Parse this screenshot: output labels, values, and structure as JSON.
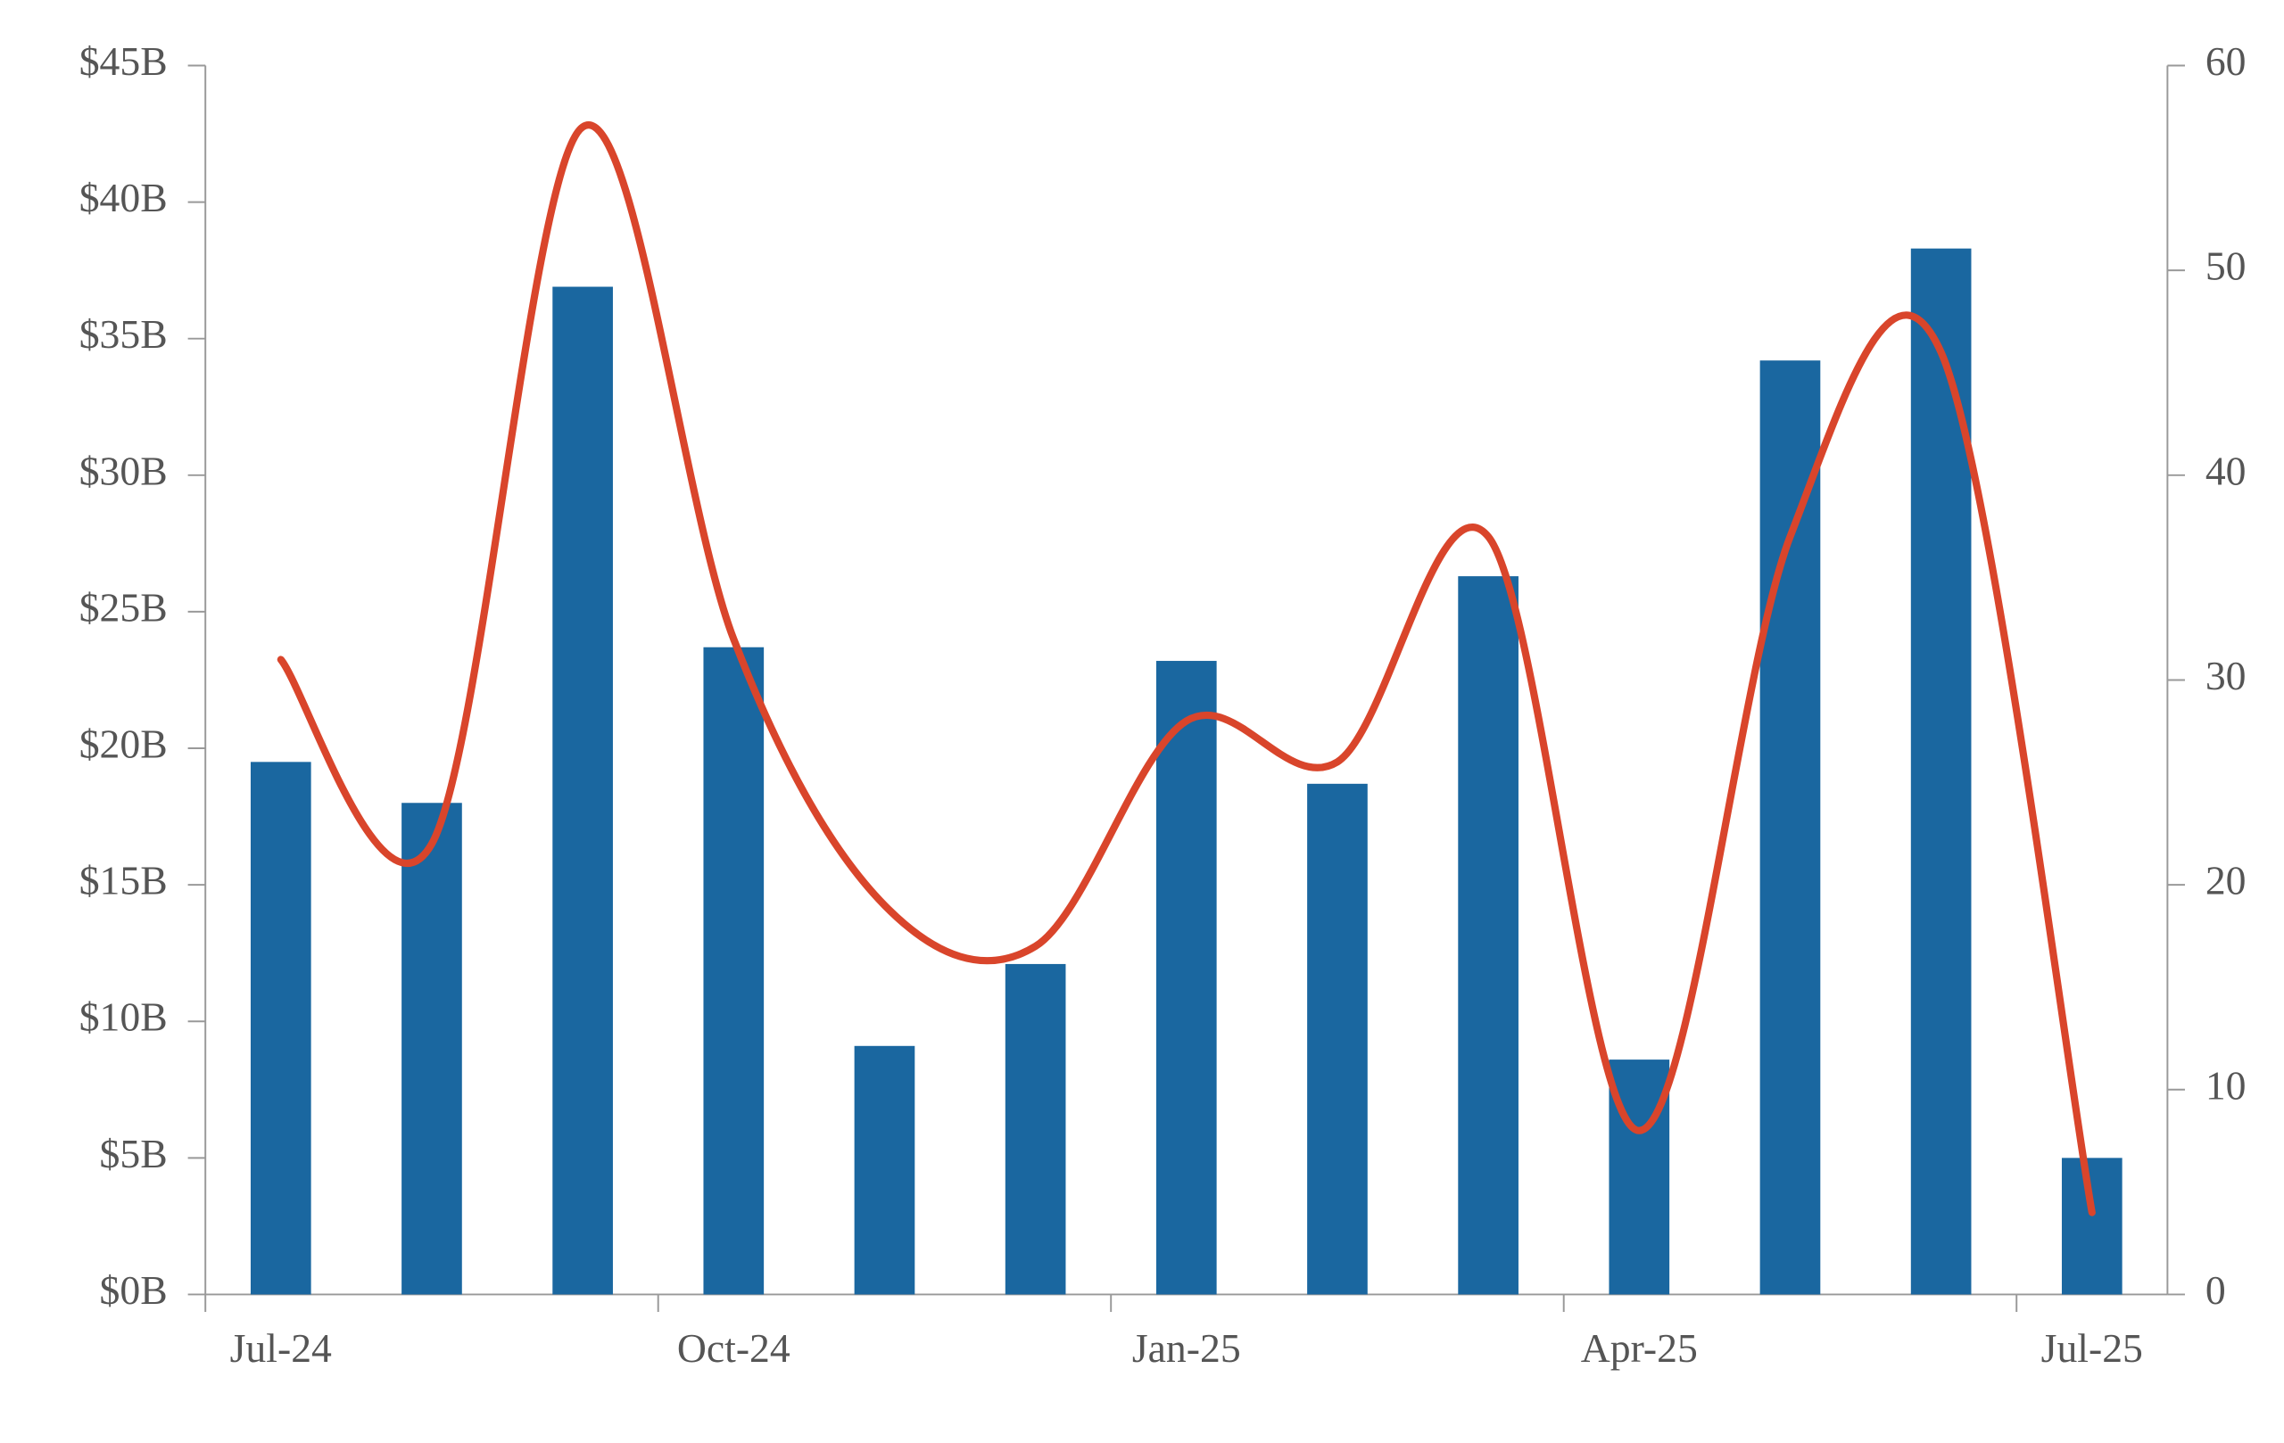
{
  "chart_data": {
    "type": "bar-line",
    "categories": [
      "Jul-24",
      null,
      null,
      "Oct-24",
      null,
      null,
      "Jan-25",
      null,
      null,
      "Apr-25",
      null,
      null,
      "Jul-25"
    ],
    "series": [
      {
        "type": "bar",
        "color": "#1a67a0",
        "values": [
          19.5,
          18.0,
          36.9,
          23.7,
          9.1,
          12.1,
          23.2,
          18.7,
          26.3,
          8.6,
          34.2,
          38.3,
          5.0
        ]
      },
      {
        "type": "line",
        "axis": "y2",
        "color": "#d9452b",
        "smooth": true,
        "values": [
          31,
          22,
          57,
          32,
          19,
          17,
          28,
          26,
          37,
          8,
          37,
          46,
          4
        ]
      }
    ],
    "ylim": [
      0,
      45
    ],
    "yticks": [
      {
        "value": 0,
        "label": "$0B"
      },
      {
        "value": 5,
        "label": "$5B"
      },
      {
        "value": 10,
        "label": "$10B"
      },
      {
        "value": 15,
        "label": "$15B"
      },
      {
        "value": 20,
        "label": "$20B"
      },
      {
        "value": 25,
        "label": "$25B"
      },
      {
        "value": 30,
        "label": "$30B"
      },
      {
        "value": 35,
        "label": "$35B"
      },
      {
        "value": 40,
        "label": "$40B"
      },
      {
        "value": 45,
        "label": "$45B"
      }
    ],
    "y2lim": [
      0,
      60
    ],
    "y2ticks": [
      0,
      10,
      20,
      30,
      40,
      50,
      60
    ],
    "grid": false
  }
}
